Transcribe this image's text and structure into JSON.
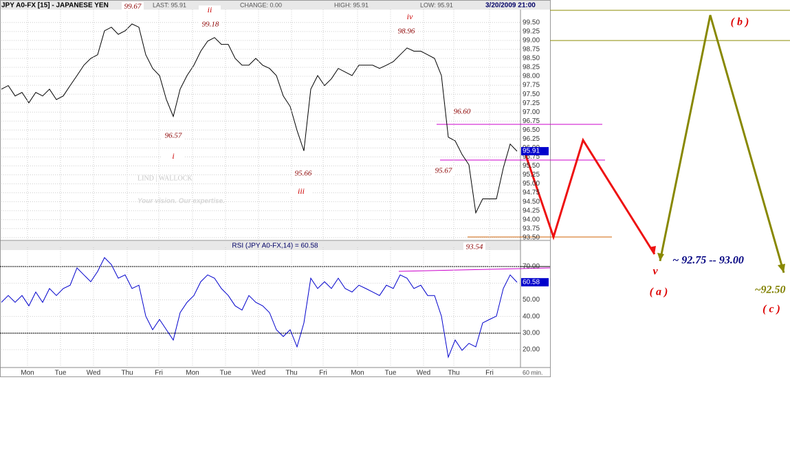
{
  "header": {
    "last": "LAST: 95.91",
    "change": "CHANGE: 0.00",
    "high": "HIGH: 95.91",
    "low": "LOW: 95.91",
    "datetime": "3/20/2009 21:00",
    "interval": "60 min."
  },
  "watermark": {
    "brand": "LIND | WALLOCK",
    "tagline": "Your vision. Our expertise."
  },
  "annotations": [
    "99.67",
    "ii",
    "99.18",
    "iv",
    "98.96",
    "96.57",
    "i",
    "95.66",
    "iii",
    "96.60",
    "95.67",
    "93.54"
  ],
  "projections": [
    "( b )",
    "~ 92.75 -- 93.00",
    "v",
    "( a )",
    "~92.50",
    "( c )"
  ],
  "chart_data": [
    {
      "type": "line",
      "title": "JPY A0-FX [15] - JAPANESE YEN",
      "color": "#000000",
      "values": [
        97.64,
        97.74,
        97.45,
        97.55,
        97.26,
        97.55,
        97.45,
        97.64,
        97.35,
        97.45,
        97.74,
        98.02,
        98.31,
        98.5,
        98.6,
        99.27,
        99.37,
        99.17,
        99.27,
        99.46,
        99.37,
        98.6,
        98.22,
        98.02,
        97.35,
        96.88,
        97.64,
        98.02,
        98.31,
        98.7,
        98.98,
        99.08,
        98.89,
        98.89,
        98.5,
        98.31,
        98.31,
        98.5,
        98.31,
        98.22,
        98.02,
        97.45,
        97.16,
        96.49,
        95.92,
        97.64,
        98.02,
        97.74,
        97.93,
        98.22,
        98.12,
        98.02,
        98.31,
        98.31,
        98.31,
        98.22,
        98.31,
        98.41,
        98.6,
        98.79,
        98.7,
        98.7,
        98.6,
        98.5,
        98.02,
        96.3,
        96.2,
        95.82,
        95.53,
        94.19,
        94.58,
        94.58,
        94.58,
        95.44,
        96.11,
        95.91
      ],
      "last_value": 95.91,
      "last_color": "#0000cc",
      "xlim": [
        0,
        75.5
      ],
      "ylim": [
        93.42,
        99.86
      ],
      "yticks": [
        {
          "value": 93.5,
          "label": "93.50"
        },
        {
          "value": 93.75,
          "label": "93.75"
        },
        {
          "value": 94,
          "label": "94.00"
        },
        {
          "value": 94.25,
          "label": "94.25"
        },
        {
          "value": 94.5,
          "label": "94.50"
        },
        {
          "value": 94.75,
          "label": "94.75"
        },
        {
          "value": 95,
          "label": "95.00"
        },
        {
          "value": 95.25,
          "label": "95.25"
        },
        {
          "value": 95.5,
          "label": "95.50"
        },
        {
          "value": 95.75,
          "label": "95.75"
        },
        {
          "value": 96,
          "label": "96.00"
        },
        {
          "value": 96.25,
          "label": "96.25"
        },
        {
          "value": 96.5,
          "label": "96.50"
        },
        {
          "value": 96.75,
          "label": "96.75"
        },
        {
          "value": 97,
          "label": "97.00"
        },
        {
          "value": 97.25,
          "label": "97.25"
        },
        {
          "value": 97.5,
          "label": "97.50"
        },
        {
          "value": 97.75,
          "label": "97.75"
        },
        {
          "value": 98,
          "label": "98.00"
        },
        {
          "value": 98.25,
          "label": "98.25"
        },
        {
          "value": 98.5,
          "label": "98.50"
        },
        {
          "value": 98.75,
          "label": "98.75"
        },
        {
          "value": 99,
          "label": "99.00"
        },
        {
          "value": 99.25,
          "label": "99.25"
        },
        {
          "value": 99.5,
          "label": "99.50"
        }
      ],
      "grid": true
    },
    {
      "type": "line",
      "title": "RSI (JPY A0-FX,14) = 60.58",
      "color": "#0000cc",
      "values": [
        48.5,
        52.6,
        48.5,
        52.6,
        46.4,
        54.7,
        48.5,
        56.8,
        52.6,
        56.8,
        58.8,
        69.2,
        65.0,
        60.9,
        67.1,
        75.4,
        71.2,
        63.0,
        65.0,
        56.8,
        58.8,
        40.2,
        32.0,
        38.2,
        32.0,
        25.8,
        42.3,
        48.5,
        52.6,
        60.9,
        65.0,
        63.0,
        56.8,
        52.6,
        46.4,
        43.8,
        52.6,
        48.5,
        46.4,
        42.3,
        32.0,
        27.9,
        32.0,
        21.7,
        36.1,
        63.0,
        56.8,
        60.9,
        56.8,
        63.0,
        56.8,
        54.7,
        58.8,
        56.8,
        54.7,
        52.6,
        58.8,
        56.8,
        65.0,
        63.0,
        56.8,
        58.8,
        52.6,
        52.6,
        40.2,
        15.5,
        25.8,
        19.6,
        23.8,
        21.7,
        36.1,
        38.2,
        40.2,
        56.8,
        65.0,
        60.58
      ],
      "last_value": 60.58,
      "last_color": "#0000cc",
      "xlim": [
        0,
        75.5
      ],
      "ylim": [
        10.5,
        81.6
      ],
      "yticks": [
        {
          "value": 20,
          "label": "20.00"
        },
        {
          "value": 30,
          "label": "30.00"
        },
        {
          "value": 40,
          "label": "40.00"
        },
        {
          "value": 50,
          "label": "50.00"
        },
        {
          "value": 60,
          "label": "60.00"
        },
        {
          "value": 70,
          "label": "70.00"
        }
      ],
      "xticks": [
        {
          "value": 3.8,
          "label": "Mon"
        },
        {
          "value": 8.6,
          "label": "Tue"
        },
        {
          "value": 13.4,
          "label": "Wed"
        },
        {
          "value": 18.3,
          "label": "Thu"
        },
        {
          "value": 22.9,
          "label": "Fri"
        },
        {
          "value": 27.8,
          "label": "Mon"
        },
        {
          "value": 32.6,
          "label": "Tue"
        },
        {
          "value": 37.4,
          "label": "Wed"
        },
        {
          "value": 42.2,
          "label": "Thu"
        },
        {
          "value": 46.8,
          "label": "Fri"
        },
        {
          "value": 51.8,
          "label": "Mon"
        },
        {
          "value": 56.6,
          "label": "Tue"
        },
        {
          "value": 61.4,
          "label": "Wed"
        },
        {
          "value": 65.8,
          "label": "Thu"
        },
        {
          "value": 71,
          "label": "Fri"
        }
      ],
      "grid": true
    }
  ]
}
